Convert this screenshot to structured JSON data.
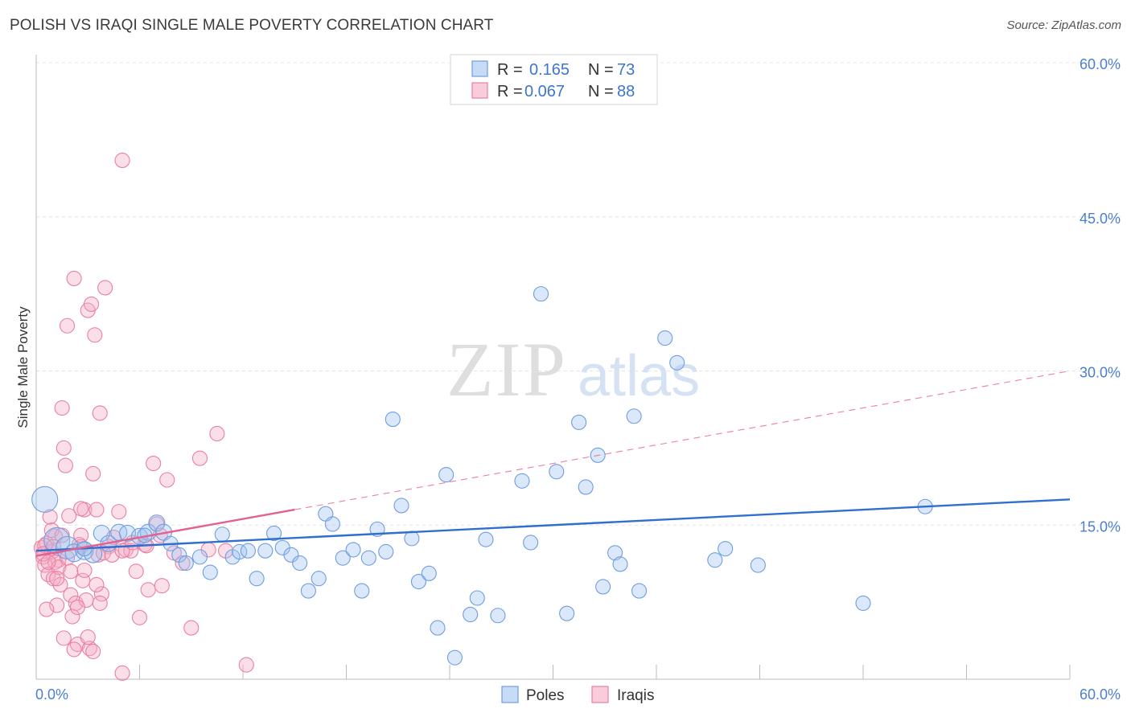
{
  "title": "POLISH VS IRAQI SINGLE MALE POVERTY CORRELATION CHART",
  "source": "Source: ZipAtlas.com",
  "colors": {
    "poles": "#6f9de0",
    "poles_fill": "rgba(160,195,240,0.38)",
    "iraqis": "#e97fa2",
    "iraqis_fill": "rgba(245,170,195,0.38)",
    "poles_line": "#2f6fd0",
    "iraqis_line": "#e4608e",
    "tick_label": "#4a7fd0"
  },
  "legend": {
    "rows": [
      {
        "r_label": "R =",
        "r_value": "0.165",
        "n_label": "N =",
        "n_value": "73"
      },
      {
        "r_label": "R =",
        "r_value": "0.067",
        "n_label": "N =",
        "n_value": "88"
      }
    ]
  },
  "watermark": {
    "zip": "ZIP",
    "atlas": "atlas"
  },
  "chart_data": {
    "type": "scatter",
    "xlabel": "",
    "ylabel": "Single Male Poverty",
    "xlim": [
      0,
      60
    ],
    "ylim": [
      0,
      60
    ],
    "x_tick_labels": [
      "0.0%",
      "60.0%"
    ],
    "y_ticks": [
      15,
      30,
      45,
      60
    ],
    "y_tick_labels": [
      "15.0%",
      "30.0%",
      "45.0%",
      "60.0%"
    ],
    "grid": true,
    "legend_position": "top-center",
    "series": [
      {
        "name": "Poles",
        "trend": {
          "x0": 0,
          "y0": 12.5,
          "x1": 60,
          "y1": 17.5,
          "dashed_from": null
        },
        "points": [
          [
            0.5,
            17.5,
            16
          ],
          [
            1.2,
            13.5,
            16
          ],
          [
            1.8,
            12.8,
            14
          ],
          [
            2.2,
            12.3,
            11
          ],
          [
            2.8,
            12.5,
            11
          ],
          [
            3.3,
            12.2,
            11
          ],
          [
            3.8,
            14.2,
            10
          ],
          [
            4.2,
            13.2,
            10
          ],
          [
            4.8,
            14.3,
            10
          ],
          [
            5.3,
            14.2,
            10
          ],
          [
            6.0,
            13.9,
            10
          ],
          [
            6.5,
            14.3,
            10
          ],
          [
            7.0,
            15.2,
            10
          ],
          [
            7.4,
            14.3,
            10
          ],
          [
            7.8,
            13.2,
            9
          ],
          [
            8.3,
            12.1,
            9
          ],
          [
            8.7,
            11.3,
            9
          ],
          [
            9.5,
            11.9,
            9
          ],
          [
            10.1,
            10.4,
            9
          ],
          [
            10.8,
            14.1,
            9
          ],
          [
            11.4,
            11.9,
            9
          ],
          [
            11.8,
            12.4,
            9
          ],
          [
            12.3,
            12.5,
            9
          ],
          [
            12.8,
            9.8,
            9
          ],
          [
            13.3,
            12.5,
            9
          ],
          [
            13.8,
            14.2,
            9
          ],
          [
            14.3,
            12.8,
            9
          ],
          [
            14.8,
            12.1,
            9
          ],
          [
            15.3,
            11.3,
            9
          ],
          [
            15.8,
            8.6,
            9
          ],
          [
            16.4,
            9.8,
            9
          ],
          [
            16.8,
            16.1,
            9
          ],
          [
            17.2,
            15.1,
            9
          ],
          [
            17.8,
            11.8,
            9
          ],
          [
            18.4,
            12.6,
            9
          ],
          [
            18.9,
            8.6,
            9
          ],
          [
            19.3,
            11.8,
            9
          ],
          [
            19.8,
            14.6,
            9
          ],
          [
            20.3,
            12.4,
            9
          ],
          [
            20.7,
            25.3,
            9
          ],
          [
            21.2,
            16.9,
            9
          ],
          [
            21.8,
            13.7,
            9
          ],
          [
            22.2,
            9.5,
            9
          ],
          [
            22.8,
            10.3,
            9
          ],
          [
            23.3,
            5.0,
            9
          ],
          [
            23.8,
            19.9,
            9
          ],
          [
            24.3,
            2.1,
            9
          ],
          [
            25.2,
            6.3,
            9
          ],
          [
            25.6,
            7.9,
            9
          ],
          [
            26.1,
            13.6,
            9
          ],
          [
            26.8,
            6.2,
            9
          ],
          [
            28.2,
            19.3,
            9
          ],
          [
            28.7,
            13.3,
            9
          ],
          [
            29.3,
            37.5,
            9
          ],
          [
            30.2,
            20.2,
            9
          ],
          [
            30.8,
            6.4,
            9
          ],
          [
            31.5,
            25.0,
            9
          ],
          [
            31.9,
            18.7,
            9
          ],
          [
            32.6,
            21.8,
            9
          ],
          [
            32.9,
            9.0,
            9
          ],
          [
            33.6,
            12.3,
            9
          ],
          [
            33.9,
            11.2,
            9
          ],
          [
            34.7,
            25.6,
            9
          ],
          [
            35.0,
            8.6,
            9
          ],
          [
            36.5,
            33.2,
            9
          ],
          [
            37.2,
            30.8,
            9
          ],
          [
            39.4,
            11.6,
            9
          ],
          [
            40.0,
            12.7,
            9
          ],
          [
            41.9,
            11.1,
            9
          ],
          [
            48.0,
            7.4,
            9
          ],
          [
            51.6,
            16.8,
            9
          ],
          [
            2.8,
            12.7,
            9
          ],
          [
            6.3,
            14.0,
            9
          ]
        ]
      },
      {
        "name": "Iraqis",
        "trend": {
          "x0": 0,
          "y0": 12.0,
          "x1": 60,
          "y1": 30.0,
          "solid_until_x": 15.0
        },
        "points": [
          [
            0.3,
            12.8,
            9
          ],
          [
            0.4,
            11.9,
            9
          ],
          [
            0.5,
            11.1,
            9
          ],
          [
            0.6,
            13.2,
            9
          ],
          [
            0.7,
            10.2,
            9
          ],
          [
            0.8,
            15.8,
            9
          ],
          [
            0.9,
            12.4,
            9
          ],
          [
            1.0,
            9.8,
            9
          ],
          [
            1.1,
            13.9,
            9
          ],
          [
            1.2,
            7.2,
            9
          ],
          [
            1.3,
            11.6,
            9
          ],
          [
            1.4,
            9.2,
            9
          ],
          [
            1.5,
            26.4,
            9
          ],
          [
            1.6,
            22.5,
            9
          ],
          [
            1.7,
            20.8,
            9
          ],
          [
            1.8,
            34.4,
            9
          ],
          [
            1.9,
            15.9,
            9
          ],
          [
            2.0,
            8.2,
            9
          ],
          [
            2.1,
            6.1,
            9
          ],
          [
            2.2,
            39.0,
            9
          ],
          [
            2.3,
            7.4,
            9
          ],
          [
            2.4,
            3.4,
            9
          ],
          [
            2.5,
            13.1,
            9
          ],
          [
            2.6,
            12.9,
            9
          ],
          [
            2.7,
            9.6,
            9
          ],
          [
            2.8,
            16.5,
            9
          ],
          [
            2.9,
            7.7,
            9
          ],
          [
            3.0,
            35.9,
            9
          ],
          [
            3.1,
            3.0,
            9
          ],
          [
            3.2,
            36.5,
            9
          ],
          [
            3.3,
            20.0,
            9
          ],
          [
            3.4,
            33.5,
            9
          ],
          [
            3.5,
            16.5,
            9
          ],
          [
            3.6,
            12.1,
            9
          ],
          [
            3.7,
            25.9,
            9
          ],
          [
            3.8,
            8.3,
            9
          ],
          [
            4.0,
            38.1,
            9
          ],
          [
            4.2,
            12.9,
            9
          ],
          [
            4.5,
            13.8,
            9
          ],
          [
            4.8,
            16.3,
            9
          ],
          [
            5.0,
            50.5,
            9
          ],
          [
            5.2,
            12.6,
            9
          ],
          [
            5.5,
            12.5,
            9
          ],
          [
            5.8,
            10.5,
            9
          ],
          [
            6.0,
            6.0,
            9
          ],
          [
            6.3,
            13.1,
            9
          ],
          [
            6.5,
            8.7,
            9
          ],
          [
            6.8,
            21.0,
            9
          ],
          [
            7.0,
            15.1,
            9
          ],
          [
            7.3,
            9.1,
            9
          ],
          [
            7.6,
            19.4,
            9
          ],
          [
            8.0,
            12.3,
            9
          ],
          [
            8.5,
            11.3,
            9
          ],
          [
            9.0,
            5.0,
            9
          ],
          [
            9.5,
            21.5,
            9
          ],
          [
            10.0,
            12.6,
            9
          ],
          [
            10.5,
            23.9,
            9
          ],
          [
            11.0,
            12.5,
            9
          ],
          [
            12.2,
            1.4,
            9
          ],
          [
            5.0,
            0.6,
            9
          ],
          [
            0.5,
            13.0,
            9
          ],
          [
            0.6,
            6.8,
            9
          ],
          [
            0.9,
            14.5,
            9
          ],
          [
            1.1,
            11.4,
            9
          ],
          [
            1.3,
            10.9,
            9
          ],
          [
            1.6,
            4.0,
            9
          ],
          [
            1.8,
            11.8,
            9
          ],
          [
            2.0,
            10.5,
            9
          ],
          [
            2.2,
            2.9,
            9
          ],
          [
            2.4,
            7.0,
            9
          ],
          [
            2.6,
            14.0,
            9
          ],
          [
            2.8,
            10.6,
            9
          ],
          [
            3.0,
            4.1,
            9
          ],
          [
            3.3,
            2.7,
            9
          ],
          [
            3.5,
            9.2,
            9
          ],
          [
            3.7,
            7.4,
            9
          ],
          [
            3.9,
            12.3,
            9
          ],
          [
            4.4,
            12.1,
            9
          ],
          [
            5.0,
            12.5,
            9
          ],
          [
            5.6,
            13.3,
            9
          ],
          [
            6.4,
            13.0,
            9
          ],
          [
            7.2,
            14.0,
            9
          ],
          [
            0.4,
            12.2,
            9
          ],
          [
            0.7,
            11.4,
            9
          ],
          [
            1.0,
            12.9,
            9
          ],
          [
            1.2,
            9.8,
            9
          ],
          [
            1.5,
            14.0,
            9
          ],
          [
            2.6,
            16.6,
            9
          ]
        ]
      }
    ],
    "bottom_legend": [
      "Poles",
      "Iraqis"
    ]
  }
}
